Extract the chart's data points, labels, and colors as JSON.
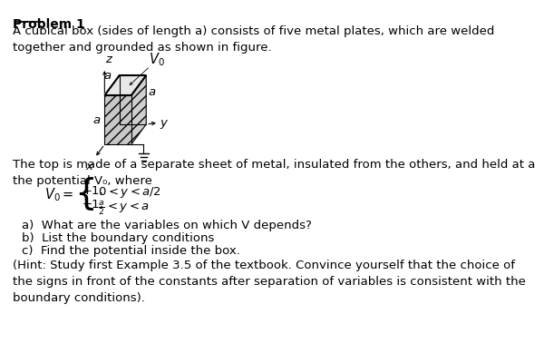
{
  "title": "Problem 1",
  "intro_text": "A cubical box (sides of length a) consists of five metal plates, which are welded\ntogether and grounded as shown in figure.",
  "middle_text": "The top is made of a separate sheet of metal, insulated from the others, and held at a\nthe potential V₀, where",
  "eq_line1": "+1,       0 < y < a/2",
  "eq_line2": "−1,       ½ < y < a",
  "items": [
    "a)  What are the variables on which V depends?",
    "b)  List the boundary conditions",
    "c)  Find the potential inside the box."
  ],
  "hint_text": "(Hint: Study first Example 3.5 of the textbook. Convince yourself that the choice of\nthe signs in front of the constants after separation of variables is consistent with the\nboundary conditions).",
  "bg_color": "#ffffff",
  "text_color": "#000000",
  "font_size": 9.5
}
